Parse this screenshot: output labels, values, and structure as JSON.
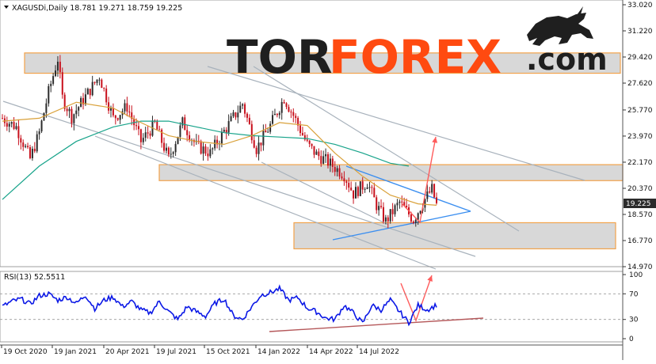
{
  "header": {
    "symbol_text": "XAGUSDi,Daily  18.781 19.271 18.759 19.225",
    "rsi_text": "RSI(13) 52.5511"
  },
  "logo": {
    "left": "TOR",
    "mid": "FOREX",
    "right": ".com",
    "colors": {
      "dark": "#1f1f1f",
      "accent": "#ff4a10"
    }
  },
  "colors": {
    "bull": "#2b2b2b",
    "bear": "#c8101c",
    "ma_fast": "#d9a13a",
    "ma_slow": "#17a38a",
    "rsi": "#0b18e6",
    "zone_fill": "#d8d8d8",
    "zone_border": "#f2a24a",
    "trend_gray": "#a8b2bc",
    "triangle": "#3a8ef0",
    "arrow": "#ff5c5c",
    "rsi_trend": "#b5585a",
    "price_tag_bg": "#2b2b2b"
  },
  "chart_data": [
    {
      "type": "candlestick",
      "symbol": "XAGUSDi",
      "timeframe": "Daily",
      "last_price": "19.225",
      "ylim": [
        14.97,
        33.02
      ],
      "yticks": [
        "33.020",
        "31.220",
        "29.420",
        "27.620",
        "25.770",
        "23.970",
        "22.170",
        "20.370",
        "18.570",
        "16.770",
        "14.970"
      ],
      "xticks": [
        "19 Oct 2020",
        "19 Jan 2021",
        "20 Apr 2021",
        "19 Jul 2021",
        "15 Oct 2021",
        "14 Jan 2022",
        "14 Apr 2022",
        "14 Jul 2022"
      ],
      "price_path": [
        [
          0,
          25.2
        ],
        [
          3,
          24.6
        ],
        [
          6,
          22.4
        ],
        [
          8,
          24.2
        ],
        [
          10,
          27.0
        ],
        [
          12,
          29.3
        ],
        [
          13,
          26.6
        ],
        [
          15,
          25.3
        ],
        [
          18,
          26.7
        ],
        [
          21,
          28.1
        ],
        [
          24,
          25.2
        ],
        [
          27,
          26.0
        ],
        [
          30,
          23.6
        ],
        [
          33,
          24.8
        ],
        [
          36,
          22.4
        ],
        [
          39,
          24.9
        ],
        [
          42,
          23.3
        ],
        [
          45,
          22.8
        ],
        [
          48,
          24.3
        ],
        [
          52,
          26.2
        ],
        [
          55,
          23.1
        ],
        [
          58,
          24.7
        ],
        [
          61,
          26.6
        ],
        [
          63,
          25.4
        ],
        [
          66,
          23.4
        ],
        [
          68,
          22.7
        ],
        [
          70,
          22.3
        ],
        [
          74,
          21.3
        ],
        [
          76,
          20.0
        ],
        [
          79,
          20.8
        ],
        [
          81,
          19.2
        ],
        [
          83,
          18.1
        ],
        [
          86,
          19.4
        ],
        [
          89,
          18.2
        ],
        [
          91,
          19.4
        ],
        [
          93,
          20.3
        ],
        [
          94,
          19.225
        ]
      ],
      "ma_fast_path": [
        [
          0,
          25.0
        ],
        [
          8,
          25.2
        ],
        [
          16,
          26.3
        ],
        [
          24,
          25.9
        ],
        [
          30,
          24.9
        ],
        [
          36,
          24.0
        ],
        [
          42,
          23.6
        ],
        [
          48,
          23.4
        ],
        [
          54,
          24.0
        ],
        [
          60,
          24.9
        ],
        [
          66,
          24.7
        ],
        [
          72,
          22.8
        ],
        [
          78,
          21.2
        ],
        [
          84,
          19.9
        ],
        [
          90,
          19.3
        ],
        [
          94,
          19.2
        ]
      ],
      "ma_slow_path": [
        [
          0,
          19.6
        ],
        [
          8,
          21.9
        ],
        [
          16,
          23.6
        ],
        [
          24,
          24.6
        ],
        [
          30,
          25.0
        ],
        [
          36,
          25.0
        ],
        [
          42,
          24.6
        ],
        [
          48,
          24.2
        ],
        [
          54,
          24.0
        ],
        [
          60,
          23.9
        ],
        [
          66,
          23.8
        ],
        [
          72,
          23.4
        ],
        [
          78,
          22.8
        ],
        [
          84,
          22.1
        ],
        [
          88,
          21.9
        ]
      ],
      "zones": [
        {
          "from": 28.3,
          "to": 29.7
        },
        {
          "from": 20.9,
          "to": 22.0
        },
        {
          "from": 16.2,
          "to": 18.0
        }
      ]
    },
    {
      "type": "line",
      "name": "RSI(13)",
      "last_value": 52.5511,
      "ylim": [
        0,
        100
      ],
      "yticks": [
        "100",
        "70",
        "30",
        "0"
      ],
      "levels": [
        70,
        30
      ],
      "path": [
        [
          0,
          50
        ],
        [
          2,
          58
        ],
        [
          4,
          62
        ],
        [
          6,
          54
        ],
        [
          8,
          67
        ],
        [
          10,
          70
        ],
        [
          12,
          60
        ],
        [
          14,
          65
        ],
        [
          16,
          55
        ],
        [
          18,
          68
        ],
        [
          20,
          47
        ],
        [
          22,
          60
        ],
        [
          24,
          65
        ],
        [
          26,
          50
        ],
        [
          28,
          58
        ],
        [
          30,
          45
        ],
        [
          32,
          40
        ],
        [
          34,
          58
        ],
        [
          36,
          42
        ],
        [
          38,
          30
        ],
        [
          40,
          50
        ],
        [
          42,
          42
        ],
        [
          44,
          35
        ],
        [
          46,
          55
        ],
        [
          48,
          62
        ],
        [
          50,
          36
        ],
        [
          52,
          30
        ],
        [
          54,
          50
        ],
        [
          56,
          68
        ],
        [
          58,
          72
        ],
        [
          60,
          78
        ],
        [
          62,
          60
        ],
        [
          64,
          64
        ],
        [
          66,
          48
        ],
        [
          68,
          42
        ],
        [
          70,
          32
        ],
        [
          72,
          30
        ],
        [
          74,
          52
        ],
        [
          76,
          40
        ],
        [
          78,
          24
        ],
        [
          80,
          52
        ],
        [
          82,
          45
        ],
        [
          84,
          60
        ],
        [
          86,
          42
        ],
        [
          88,
          25
        ],
        [
          90,
          52
        ],
        [
          92,
          45
        ],
        [
          94,
          52.55
        ]
      ]
    }
  ]
}
